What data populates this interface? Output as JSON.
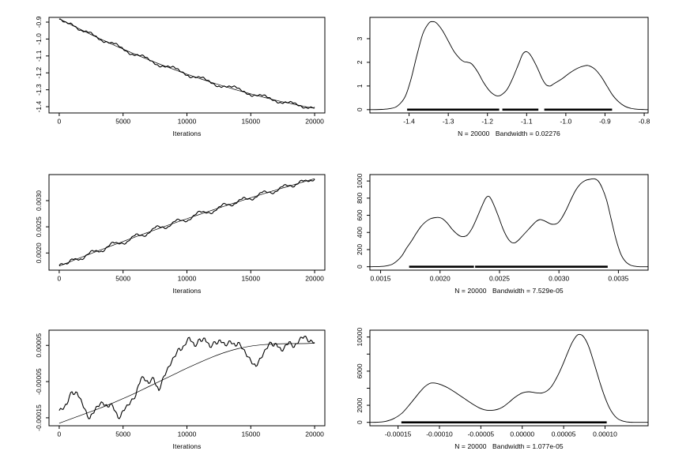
{
  "background": "#ffffff",
  "line_color": "#000000",
  "chart_data": [
    {
      "type": "line",
      "kind": "trace",
      "id": "trace-1",
      "title": "",
      "xlabel": "Iterations",
      "ylabel": "",
      "grid": {
        "row": 0,
        "col": 0
      },
      "xlim": [
        -800,
        20800
      ],
      "ylim": [
        -1.437,
        -0.872
      ],
      "xticks": {
        "values": [
          0,
          5000,
          10000,
          15000,
          20000
        ],
        "labels": [
          "0",
          "5000",
          "10000",
          "15000",
          "20000"
        ]
      },
      "yticks": {
        "values": [
          -1.4,
          -1.3,
          -1.2,
          -1.1,
          -1.0,
          -0.9
        ],
        "labels": [
          "-1.4",
          "-1.3",
          "-1.2",
          "-1.1",
          "-1.0",
          "-0.9"
        ]
      },
      "x_start": 0,
      "x_end": 20000,
      "trend_poly": [
        -0.88,
        -0.78,
        0.25
      ],
      "noise_scale": 0.001,
      "jitter_amp": 0.004,
      "noise": [
        -3,
        -1,
        -4,
        -1,
        3,
        7,
        2,
        -3,
        -8,
        -4,
        1,
        6,
        11,
        7,
        3,
        -2,
        -6,
        -10,
        -5,
        0,
        4,
        9,
        14,
        10,
        5,
        1,
        -4,
        -9,
        -13,
        -8,
        -3,
        2,
        7,
        12,
        8,
        3,
        -1,
        -6,
        -11,
        -15,
        -10,
        -4,
        1,
        6,
        10,
        15,
        11,
        6,
        2,
        -3,
        -7,
        -12,
        -8,
        -2,
        3,
        8,
        13,
        9,
        4,
        0,
        -5,
        -9,
        -14,
        -10,
        -5,
        1,
        5,
        10,
        14,
        18,
        13,
        8,
        3,
        -2,
        -6,
        -11,
        -7,
        -1,
        4,
        9,
        13,
        10,
        5,
        0,
        -4,
        -8,
        -12,
        -9,
        -3,
        2,
        6,
        11,
        8,
        3,
        -2,
        -5,
        -9,
        -6,
        -1,
        3,
        7
      ]
    },
    {
      "type": "line",
      "kind": "density",
      "id": "density-1",
      "title": "",
      "xlabel": "N = 20000   Bandwidth = 0.02276",
      "ylabel": "",
      "grid": {
        "row": 0,
        "col": 1
      },
      "xlim": [
        -1.5,
        -0.79
      ],
      "ylim": [
        -0.14,
        3.9
      ],
      "xticks": {
        "values": [
          -1.4,
          -1.3,
          -1.2,
          -1.1,
          -1.0,
          -0.9,
          -0.8
        ],
        "labels": [
          "-1.4",
          "-1.3",
          "-1.2",
          "-1.1",
          "-1.0",
          "-0.9",
          "-0.8"
        ]
      },
      "yticks": {
        "values": [
          0,
          1,
          2,
          3
        ],
        "labels": [
          "0",
          "1",
          "2",
          "3"
        ]
      },
      "points": [
        [
          -1.5,
          0
        ],
        [
          -1.47,
          0.01
        ],
        [
          -1.45,
          0.04
        ],
        [
          -1.43,
          0.15
        ],
        [
          -1.41,
          0.55
        ],
        [
          -1.395,
          1.3
        ],
        [
          -1.38,
          2.3
        ],
        [
          -1.365,
          3.2
        ],
        [
          -1.35,
          3.65
        ],
        [
          -1.34,
          3.72
        ],
        [
          -1.33,
          3.66
        ],
        [
          -1.315,
          3.35
        ],
        [
          -1.3,
          2.9
        ],
        [
          -1.285,
          2.45
        ],
        [
          -1.27,
          2.15
        ],
        [
          -1.26,
          2.03
        ],
        [
          -1.25,
          2.0
        ],
        [
          -1.24,
          1.93
        ],
        [
          -1.225,
          1.6
        ],
        [
          -1.21,
          1.15
        ],
        [
          -1.195,
          0.8
        ],
        [
          -1.185,
          0.65
        ],
        [
          -1.175,
          0.58
        ],
        [
          -1.165,
          0.62
        ],
        [
          -1.15,
          0.85
        ],
        [
          -1.135,
          1.35
        ],
        [
          -1.12,
          1.95
        ],
        [
          -1.11,
          2.35
        ],
        [
          -1.1,
          2.45
        ],
        [
          -1.09,
          2.3
        ],
        [
          -1.075,
          1.85
        ],
        [
          -1.06,
          1.3
        ],
        [
          -1.05,
          1.05
        ],
        [
          -1.04,
          1.0
        ],
        [
          -1.03,
          1.1
        ],
        [
          -1.01,
          1.3
        ],
        [
          -0.99,
          1.55
        ],
        [
          -0.97,
          1.75
        ],
        [
          -0.95,
          1.86
        ],
        [
          -0.94,
          1.85
        ],
        [
          -0.925,
          1.7
        ],
        [
          -0.91,
          1.4
        ],
        [
          -0.895,
          1.0
        ],
        [
          -0.88,
          0.6
        ],
        [
          -0.865,
          0.33
        ],
        [
          -0.85,
          0.15
        ],
        [
          -0.835,
          0.06
        ],
        [
          -0.82,
          0.02
        ],
        [
          -0.8,
          0.005
        ],
        [
          -0.79,
          0
        ]
      ],
      "rug": [
        [
          -1.405,
          -1.17
        ],
        [
          -1.162,
          -1.07
        ],
        [
          -1.055,
          -0.882
        ]
      ]
    },
    {
      "type": "line",
      "kind": "trace",
      "id": "trace-2",
      "title": "",
      "xlabel": "Iterations",
      "ylabel": "",
      "grid": {
        "row": 1,
        "col": 0
      },
      "xlim": [
        -800,
        20800
      ],
      "ylim": [
        0.001672,
        0.003498
      ],
      "xticks": {
        "values": [
          0,
          5000,
          10000,
          15000,
          20000
        ],
        "labels": [
          "0",
          "5000",
          "10000",
          "15000",
          "20000"
        ]
      },
      "yticks": {
        "values": [
          0.002,
          0.0025,
          0.003
        ],
        "labels": [
          "0.0020",
          "0.0025",
          "0.0030"
        ]
      },
      "x_start": 0,
      "x_end": 20000,
      "trend_poly": [
        0.00175,
        0.00195,
        -0.00028
      ],
      "noise_scale": 1e-05,
      "jitter_amp": 1.2e-05,
      "noise": [
        1,
        3,
        0,
        -2,
        1,
        4,
        2,
        -1,
        -3,
        -5,
        -2,
        1,
        3,
        5,
        2,
        0,
        -3,
        -5,
        -2,
        1,
        4,
        6,
        3,
        0,
        -2,
        -4,
        -6,
        -3,
        0,
        3,
        5,
        2,
        -1,
        -4,
        -5,
        -2,
        1,
        4,
        6,
        4,
        1,
        -2,
        -5,
        -3,
        0,
        3,
        5,
        3,
        0,
        -3,
        -5,
        -4,
        -1,
        2,
        5,
        6,
        3,
        1,
        -2,
        -4,
        -6,
        -3,
        0,
        2,
        5,
        4,
        1,
        -2,
        -4,
        -2,
        1,
        3,
        5,
        2,
        -1,
        -3,
        -5,
        -2,
        1,
        4,
        5,
        2,
        0,
        -3,
        -5,
        -3,
        0,
        3,
        5,
        3,
        1,
        -2,
        -4,
        -1,
        2,
        4,
        2,
        0,
        -2,
        -3,
        -1
      ]
    },
    {
      "type": "line",
      "kind": "density",
      "id": "density-2",
      "title": "",
      "xlabel": "N = 20000   Bandwidth = 7.529e-05",
      "ylabel": "",
      "grid": {
        "row": 1,
        "col": 1
      },
      "xlim": [
        0.00141,
        0.00375
      ],
      "ylim": [
        -40,
        1075
      ],
      "xticks": {
        "values": [
          0.0015,
          0.002,
          0.0025,
          0.003,
          0.0035
        ],
        "labels": [
          "0.0015",
          "0.0020",
          "0.0025",
          "0.0030",
          "0.0035"
        ]
      },
      "yticks": {
        "values": [
          0,
          200,
          400,
          600,
          800,
          1000
        ],
        "labels": [
          "0",
          "200",
          "400",
          "600",
          "800",
          "1000"
        ]
      },
      "points": [
        [
          0.00141,
          0
        ],
        [
          0.0015,
          3
        ],
        [
          0.00155,
          10
        ],
        [
          0.0016,
          30
        ],
        [
          0.00164,
          70
        ],
        [
          0.00168,
          130
        ],
        [
          0.00172,
          220
        ],
        [
          0.00176,
          300
        ],
        [
          0.0018,
          390
        ],
        [
          0.00184,
          470
        ],
        [
          0.00188,
          525
        ],
        [
          0.00192,
          560
        ],
        [
          0.00196,
          573
        ],
        [
          0.00199,
          575
        ],
        [
          0.00202,
          560
        ],
        [
          0.00206,
          510
        ],
        [
          0.0021,
          440
        ],
        [
          0.00214,
          385
        ],
        [
          0.00217,
          357
        ],
        [
          0.0022,
          352
        ],
        [
          0.00223,
          370
        ],
        [
          0.00227,
          450
        ],
        [
          0.00231,
          570
        ],
        [
          0.00235,
          700
        ],
        [
          0.00238,
          790
        ],
        [
          0.0024,
          820
        ],
        [
          0.00242,
          810
        ],
        [
          0.00245,
          730
        ],
        [
          0.00249,
          590
        ],
        [
          0.00253,
          440
        ],
        [
          0.00257,
          330
        ],
        [
          0.0026,
          285
        ],
        [
          0.00263,
          280
        ],
        [
          0.00266,
          310
        ],
        [
          0.0027,
          370
        ],
        [
          0.00274,
          430
        ],
        [
          0.00278,
          490
        ],
        [
          0.00281,
          530
        ],
        [
          0.00284,
          550
        ],
        [
          0.00287,
          540
        ],
        [
          0.0029,
          520
        ],
        [
          0.00293,
          500
        ],
        [
          0.00296,
          495
        ],
        [
          0.00299,
          510
        ],
        [
          0.00302,
          560
        ],
        [
          0.00306,
          660
        ],
        [
          0.0031,
          780
        ],
        [
          0.00314,
          890
        ],
        [
          0.00318,
          965
        ],
        [
          0.00322,
          1005
        ],
        [
          0.00326,
          1020
        ],
        [
          0.0033,
          1025
        ],
        [
          0.00333,
          1000
        ],
        [
          0.00336,
          930
        ],
        [
          0.0034,
          780
        ],
        [
          0.00344,
          550
        ],
        [
          0.00348,
          320
        ],
        [
          0.00352,
          150
        ],
        [
          0.00356,
          60
        ],
        [
          0.0036,
          20
        ],
        [
          0.00364,
          5
        ],
        [
          0.00368,
          0
        ],
        [
          0.00375,
          0
        ]
      ],
      "rug": [
        [
          0.00174,
          0.002285
        ],
        [
          0.002295,
          0.00341
        ]
      ]
    },
    {
      "type": "line",
      "kind": "trace",
      "id": "trace-3",
      "title": "",
      "xlabel": "Iterations",
      "ylabel": "",
      "grid": {
        "row": 2,
        "col": 0
      },
      "xlim": [
        -800,
        20800
      ],
      "ylim": [
        -0.000172,
        9.2e-05
      ],
      "xticks": {
        "values": [
          0,
          5000,
          10000,
          15000,
          20000
        ],
        "labels": [
          "0",
          "5000",
          "10000",
          "15000",
          "20000"
        ]
      },
      "yticks": {
        "values": [
          -0.00015,
          -5e-05,
          5e-05
        ],
        "labels": [
          "-0.00015",
          "-0.00005",
          "0.00005"
        ]
      },
      "x_start": 0,
      "x_end": 20000,
      "value_scale": 1e-06,
      "jitter_amp": 4e-06,
      "series_values": [
        -130,
        -126,
        -120,
        -113,
        -90,
        -78,
        -85,
        -80,
        -95,
        -110,
        -125,
        -145,
        -152,
        -138,
        -128,
        -118,
        -112,
        -108,
        -115,
        -120,
        -112,
        -118,
        -132,
        -150,
        -147,
        -130,
        -122,
        -115,
        -105,
        -98,
        -88,
        -60,
        -42,
        -38,
        -48,
        -55,
        -45,
        -40,
        -62,
        -75,
        -55,
        -35,
        -22,
        -8,
        5,
        18,
        30,
        42,
        38,
        50,
        62,
        72,
        60,
        48,
        55,
        68,
        62,
        70,
        58,
        45,
        52,
        60,
        55,
        65,
        58,
        50,
        55,
        62,
        55,
        48,
        58,
        50,
        40,
        28,
        18,
        8,
        -2,
        -8,
        5,
        15,
        28,
        40,
        52,
        58,
        48,
        55,
        45,
        35,
        42,
        52,
        60,
        52,
        45,
        55,
        65,
        72,
        75,
        68,
        60,
        62,
        58
      ],
      "trend_points": [
        -165,
        -152,
        -139,
        -126,
        -112,
        -97,
        -81,
        -64,
        -47,
        -30,
        -13,
        3,
        18,
        31,
        41,
        48,
        52,
        54,
        55,
        55,
        56
      ]
    },
    {
      "type": "line",
      "kind": "density",
      "id": "density-3",
      "title": "",
      "xlabel": "N = 20000   Bandwidth = 1.077e-05",
      "ylabel": "",
      "grid": {
        "row": 2,
        "col": 1
      },
      "xlim": [
        -0.000184,
        0.000152
      ],
      "ylim": [
        -400,
        10800
      ],
      "xticks": {
        "values": [
          -0.00015,
          -0.0001,
          -5e-05,
          0,
          5e-05,
          0.0001
        ],
        "labels": [
          "-0.00015",
          "-0.00010",
          "-0.00005",
          "0.00000",
          "0.00005",
          "0.00010"
        ]
      },
      "yticks": {
        "values": [
          0,
          2000,
          4000,
          6000,
          8000,
          10000
        ],
        "labels": [
          "0",
          "2000",
          "",
          "6000",
          "",
          "10000"
        ]
      },
      "points": [
        [
          -0.000184,
          0
        ],
        [
          -0.000175,
          20
        ],
        [
          -0.000165,
          120
        ],
        [
          -0.000155,
          450
        ],
        [
          -0.000145,
          1100
        ],
        [
          -0.000135,
          2200
        ],
        [
          -0.000125,
          3400
        ],
        [
          -0.000118,
          4150
        ],
        [
          -0.000112,
          4550
        ],
        [
          -0.000108,
          4620
        ],
        [
          -0.000103,
          4560
        ],
        [
          -9.8e-05,
          4400
        ],
        [
          -9e-05,
          4050
        ],
        [
          -8e-05,
          3450
        ],
        [
          -7e-05,
          2800
        ],
        [
          -6e-05,
          2150
        ],
        [
          -5.2e-05,
          1700
        ],
        [
          -4.6e-05,
          1480
        ],
        [
          -4e-05,
          1400
        ],
        [
          -3.4e-05,
          1430
        ],
        [
          -2.8e-05,
          1580
        ],
        [
          -2.2e-05,
          1900
        ],
        [
          -1.6e-05,
          2350
        ],
        [
          -1e-05,
          2850
        ],
        [
          -4e-06,
          3250
        ],
        [
          0,
          3450
        ],
        [
          4e-06,
          3550
        ],
        [
          8e-06,
          3580
        ],
        [
          1.2e-05,
          3540
        ],
        [
          1.6e-05,
          3470
        ],
        [
          2e-05,
          3430
        ],
        [
          2.4e-05,
          3450
        ],
        [
          2.8e-05,
          3580
        ],
        [
          3.2e-05,
          3850
        ],
        [
          3.6e-05,
          4300
        ],
        [
          4e-05,
          4950
        ],
        [
          4.5e-05,
          5900
        ],
        [
          5e-05,
          7000
        ],
        [
          5.5e-05,
          8200
        ],
        [
          6e-05,
          9300
        ],
        [
          6.4e-05,
          9950
        ],
        [
          6.7e-05,
          10250
        ],
        [
          7e-05,
          10300
        ],
        [
          7.3e-05,
          10150
        ],
        [
          7.7e-05,
          9600
        ],
        [
          8.1e-05,
          8700
        ],
        [
          8.5e-05,
          7500
        ],
        [
          9e-05,
          5900
        ],
        [
          9.5e-05,
          4300
        ],
        [
          0.0001,
          2900
        ],
        [
          0.000105,
          1750
        ],
        [
          0.00011,
          950
        ],
        [
          0.000115,
          450
        ],
        [
          0.00012,
          190
        ],
        [
          0.000125,
          70
        ],
        [
          0.00013,
          20
        ],
        [
          0.000136,
          0
        ],
        [
          0.000152,
          0
        ]
      ],
      "rug": [
        [
          -0.000146,
          0.000102
        ]
      ]
    }
  ]
}
